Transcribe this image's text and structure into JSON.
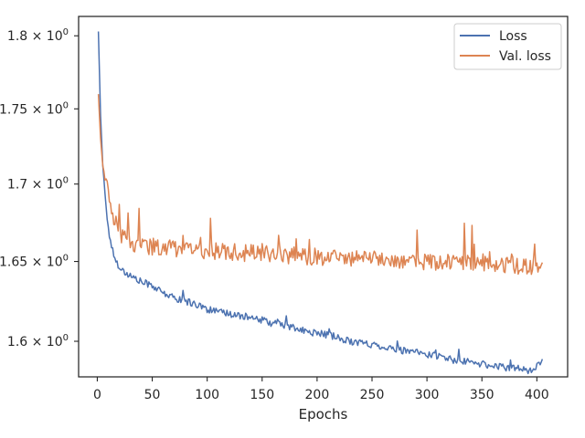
{
  "chart_data": {
    "type": "line",
    "xlabel": "Epochs",
    "ylabel": "",
    "title": "",
    "yscale": "log",
    "xlim": [
      -17,
      428
    ],
    "ylim": [
      1.5782,
      1.8135
    ],
    "xticks": [
      0,
      50,
      100,
      150,
      200,
      250,
      300,
      350,
      400
    ],
    "xtick_labels": [
      "0",
      "50",
      "100",
      "150",
      "200",
      "250",
      "300",
      "350",
      "400"
    ],
    "yticks": [
      {
        "value": 1.6,
        "mantissa": "1.6"
      },
      {
        "value": 1.65,
        "mantissa": "1.65"
      },
      {
        "value": 1.7,
        "mantissa": "1.7"
      },
      {
        "value": 1.75,
        "mantissa": "1.75"
      },
      {
        "value": 1.8,
        "mantissa": "1.8"
      }
    ],
    "ytick_base": "10",
    "ytick_exponent": "0",
    "legend_position": "top-right",
    "grid": false,
    "series": [
      {
        "name": "Loss",
        "color": "#4c72b0",
        "x": [
          1,
          3,
          5,
          7,
          9,
          11,
          13,
          15,
          18,
          21,
          25,
          30,
          35,
          40,
          45,
          50,
          55,
          60,
          70,
          80,
          90,
          100,
          110,
          120,
          130,
          140,
          150,
          160,
          170,
          180,
          190,
          200,
          210,
          220,
          230,
          240,
          250,
          260,
          270,
          280,
          290,
          300,
          310,
          320,
          330,
          340,
          350,
          360,
          370,
          380,
          385,
          390,
          395,
          400,
          405
        ],
        "y": [
          1.803,
          1.745,
          1.712,
          1.695,
          1.676,
          1.667,
          1.66,
          1.654,
          1.649,
          1.646,
          1.643,
          1.641,
          1.639,
          1.637,
          1.636,
          1.635,
          1.632,
          1.63,
          1.627,
          1.625,
          1.623,
          1.62,
          1.618,
          1.617,
          1.616,
          1.614,
          1.613,
          1.611,
          1.61,
          1.608,
          1.606,
          1.605,
          1.604,
          1.602,
          1.6,
          1.599,
          1.598,
          1.597,
          1.595,
          1.594,
          1.593,
          1.592,
          1.591,
          1.589,
          1.588,
          1.587,
          1.586,
          1.585,
          1.584,
          1.584,
          1.583,
          1.582,
          1.583,
          1.584,
          1.588
        ],
        "noise": 0.0022,
        "max_noise": 0.004
      },
      {
        "name": "Val. loss",
        "color": "#dd8452",
        "x": [
          1,
          3,
          5,
          7,
          9,
          11,
          13,
          15,
          18,
          21,
          25,
          30,
          40,
          60,
          80,
          100,
          120,
          150,
          200,
          250,
          300,
          350,
          400,
          405
        ],
        "y": [
          1.76,
          1.73,
          1.712,
          1.705,
          1.698,
          1.69,
          1.684,
          1.678,
          1.672,
          1.668,
          1.664,
          1.661,
          1.66,
          1.659,
          1.658,
          1.657,
          1.656,
          1.655,
          1.653,
          1.652,
          1.65,
          1.648,
          1.647,
          1.647
        ],
        "noise": 0.0055,
        "max_noise": 0.006
      }
    ]
  }
}
